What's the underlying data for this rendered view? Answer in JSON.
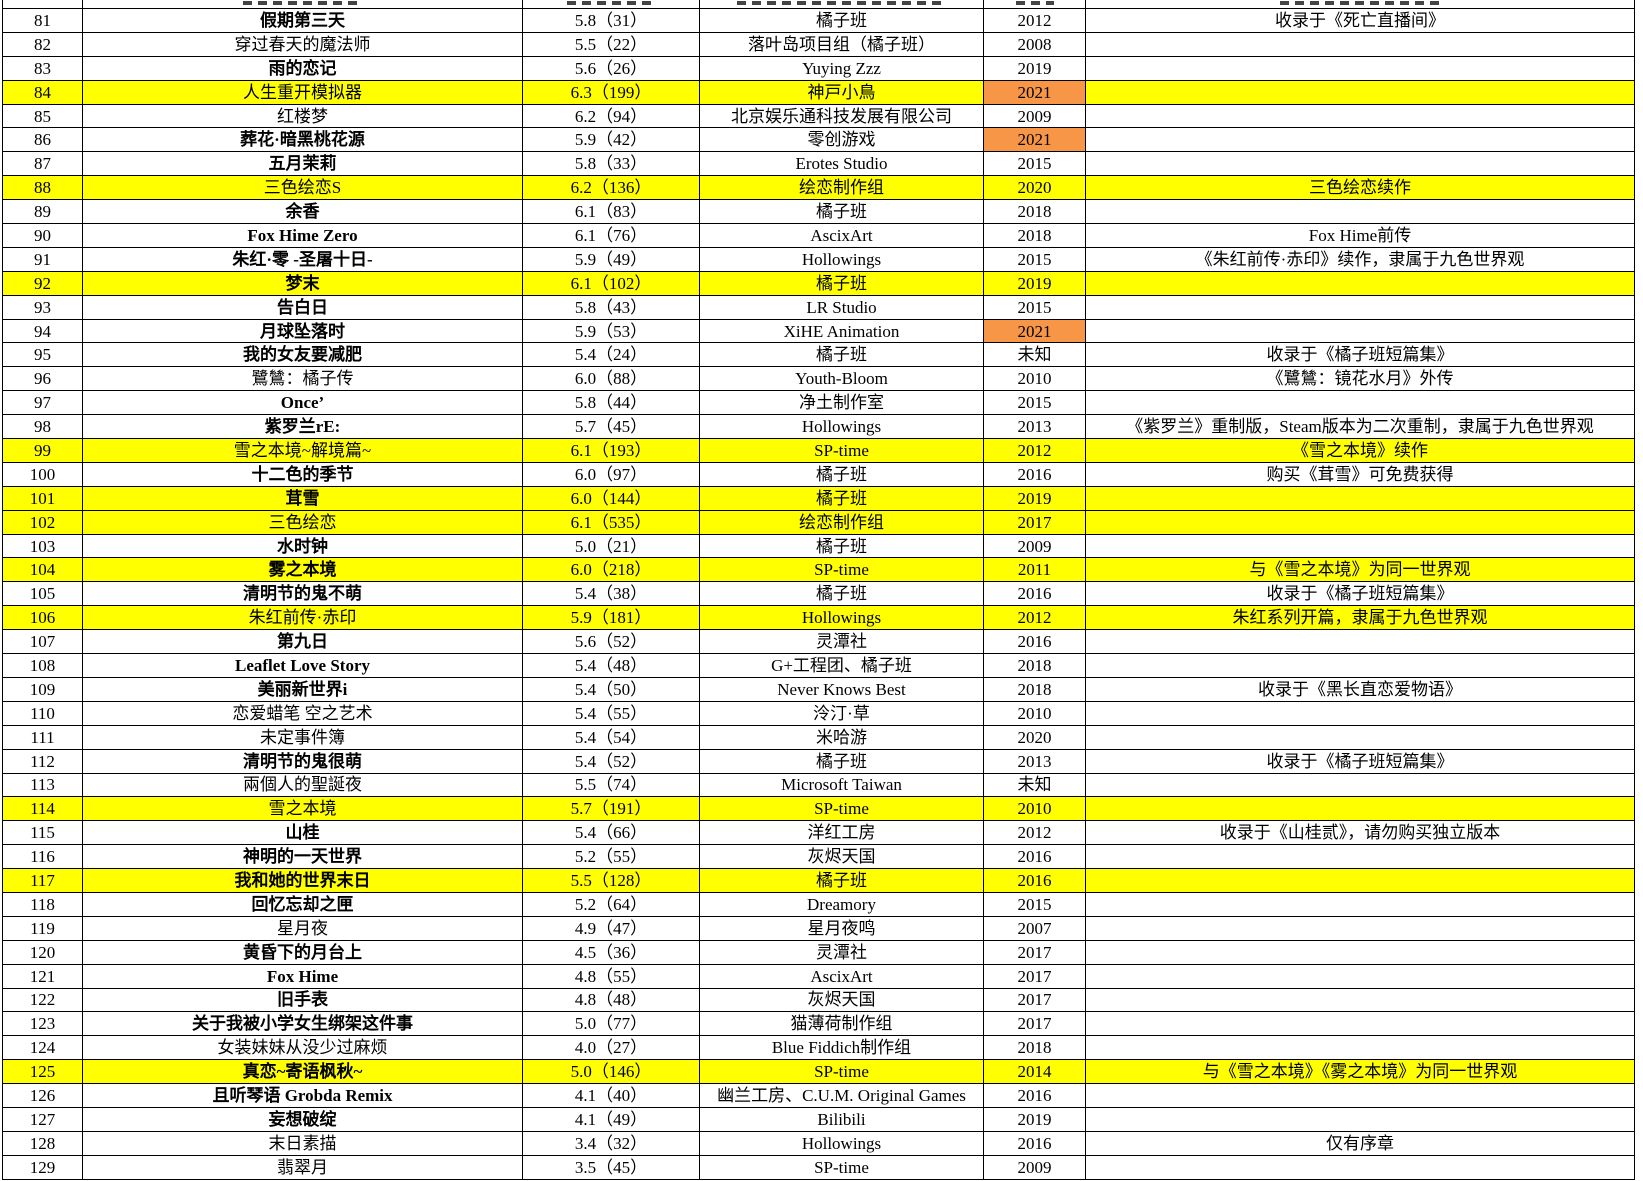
{
  "table": {
    "columns": [
      "num",
      "title",
      "rating",
      "developer",
      "year",
      "note"
    ],
    "colors": {
      "row_highlight": "#FFFF00",
      "year_highlight": "#F79646",
      "grid": "#000000"
    },
    "rows": [
      {
        "num": "81",
        "title": "假期第三天",
        "bold": true,
        "rating": "5.8（31）",
        "developer": "橘子班",
        "year": "2012",
        "note": "收录于《死亡直播间》",
        "hl": false,
        "yhl": false
      },
      {
        "num": "82",
        "title": "穿过春天的魔法师",
        "bold": false,
        "rating": "5.5（22）",
        "developer": "落叶岛项目组（橘子班）",
        "year": "2008",
        "note": "",
        "hl": false,
        "yhl": false
      },
      {
        "num": "83",
        "title": "雨的恋记",
        "bold": true,
        "rating": "5.6（26）",
        "developer": "Yuying Zzz",
        "year": "2019",
        "note": "",
        "hl": false,
        "yhl": false
      },
      {
        "num": "84",
        "title": "人生重开模拟器",
        "bold": false,
        "rating": "6.3（199）",
        "developer": "神戸小鳥",
        "year": "2021",
        "note": "",
        "hl": true,
        "yhl": true
      },
      {
        "num": "85",
        "title": "红楼梦",
        "bold": false,
        "rating": "6.2（94）",
        "developer": "北京娱乐通科技发展有限公司",
        "year": "2009",
        "note": "",
        "hl": false,
        "yhl": false
      },
      {
        "num": "86",
        "title": "葬花·暗黑桃花源",
        "bold": true,
        "rating": "5.9（42）",
        "developer": "零创游戏",
        "year": "2021",
        "note": "",
        "hl": false,
        "yhl": true
      },
      {
        "num": "87",
        "title": "五月茉莉",
        "bold": true,
        "rating": "5.8（33）",
        "developer": "Erotes Studio",
        "year": "2015",
        "note": "",
        "hl": false,
        "yhl": false
      },
      {
        "num": "88",
        "title": "三色绘恋S",
        "bold": false,
        "rating": "6.2（136）",
        "developer": "绘恋制作组",
        "year": "2020",
        "note": "三色绘恋续作",
        "hl": true,
        "yhl": false
      },
      {
        "num": "89",
        "title": "余香",
        "bold": true,
        "rating": "6.1（83）",
        "developer": "橘子班",
        "year": "2018",
        "note": "",
        "hl": false,
        "yhl": false
      },
      {
        "num": "90",
        "title": "Fox Hime Zero",
        "bold": true,
        "rating": "6.1（76）",
        "developer": "AscixArt",
        "year": "2018",
        "note": "Fox Hime前传",
        "hl": false,
        "yhl": false
      },
      {
        "num": "91",
        "title": "朱红·零 -圣屠十日-",
        "bold": true,
        "rating": "5.9（49）",
        "developer": "Hollowings",
        "year": "2015",
        "note": "《朱红前传·赤印》续作，隶属于九色世界观",
        "hl": false,
        "yhl": false
      },
      {
        "num": "92",
        "title": "梦末",
        "bold": true,
        "rating": "6.1（102）",
        "developer": "橘子班",
        "year": "2019",
        "note": "",
        "hl": true,
        "yhl": false
      },
      {
        "num": "93",
        "title": "告白日",
        "bold": true,
        "rating": "5.8（43）",
        "developer": "LR Studio",
        "year": "2015",
        "note": "",
        "hl": false,
        "yhl": false
      },
      {
        "num": "94",
        "title": "月球坠落时",
        "bold": true,
        "rating": "5.9（53）",
        "developer": "XiHE Animation",
        "year": "2021",
        "note": "",
        "hl": false,
        "yhl": true
      },
      {
        "num": "95",
        "title": "我的女友要减肥",
        "bold": true,
        "rating": "5.4（24）",
        "developer": "橘子班",
        "year": "未知",
        "note": "收录于《橘子班短篇集》",
        "hl": false,
        "yhl": false
      },
      {
        "num": "96",
        "title": "鷺鷥：橘子传",
        "bold": false,
        "rating": "6.0（88）",
        "developer": "Youth-Bloom",
        "year": "2010",
        "note": "《鷺鷥：镜花水月》外传",
        "hl": false,
        "yhl": false
      },
      {
        "num": "97",
        "title": "Once’",
        "bold": true,
        "rating": "5.8（44）",
        "developer": "净土制作室",
        "year": "2015",
        "note": "",
        "hl": false,
        "yhl": false
      },
      {
        "num": "98",
        "title": "紫罗兰rE:",
        "bold": true,
        "rating": "5.7（45）",
        "developer": "Hollowings",
        "year": "2013",
        "note": "《紫罗兰》重制版，Steam版本为二次重制，隶属于九色世界观",
        "hl": false,
        "yhl": false
      },
      {
        "num": "99",
        "title": "雪之本境~解境篇~",
        "bold": false,
        "rating": "6.1（193）",
        "developer": "SP-time",
        "year": "2012",
        "note": "《雪之本境》续作",
        "hl": true,
        "yhl": false
      },
      {
        "num": "100",
        "title": "十二色的季节",
        "bold": true,
        "rating": "6.0（97）",
        "developer": "橘子班",
        "year": "2016",
        "note": "购买《茸雪》可免费获得",
        "hl": false,
        "yhl": false
      },
      {
        "num": "101",
        "title": "茸雪",
        "bold": true,
        "rating": "6.0（144）",
        "developer": "橘子班",
        "year": "2019",
        "note": "",
        "hl": true,
        "yhl": false
      },
      {
        "num": "102",
        "title": "三色绘恋",
        "bold": false,
        "rating": "6.1（535）",
        "developer": "绘恋制作组",
        "year": "2017",
        "note": "",
        "hl": true,
        "yhl": false
      },
      {
        "num": "103",
        "title": "水时钟",
        "bold": true,
        "rating": "5.0（21）",
        "developer": "橘子班",
        "year": "2009",
        "note": "",
        "hl": false,
        "yhl": false
      },
      {
        "num": "104",
        "title": "雾之本境",
        "bold": true,
        "rating": "6.0（218）",
        "developer": "SP-time",
        "year": "2011",
        "note": "与《雪之本境》为同一世界观",
        "hl": true,
        "yhl": false
      },
      {
        "num": "105",
        "title": "清明节的鬼不萌",
        "bold": true,
        "rating": "5.4（38）",
        "developer": "橘子班",
        "year": "2016",
        "note": "收录于《橘子班短篇集》",
        "hl": false,
        "yhl": false
      },
      {
        "num": "106",
        "title": "朱红前传·赤印",
        "bold": false,
        "rating": "5.9（181）",
        "developer": "Hollowings",
        "year": "2012",
        "note": "朱红系列开篇，隶属于九色世界观",
        "hl": true,
        "yhl": false
      },
      {
        "num": "107",
        "title": "第九日",
        "bold": true,
        "rating": "5.6（52）",
        "developer": "灵潭社",
        "year": "2016",
        "note": "",
        "hl": false,
        "yhl": false
      },
      {
        "num": "108",
        "title": "Leaflet Love Story",
        "bold": true,
        "rating": "5.4（48）",
        "developer": "G+工程团、橘子班",
        "year": "2018",
        "note": "",
        "hl": false,
        "yhl": false
      },
      {
        "num": "109",
        "title": "美丽新世界i",
        "bold": true,
        "rating": "5.4（50）",
        "developer": "Never Knows Best",
        "year": "2018",
        "note": "收录于《黑长直恋爱物语》",
        "hl": false,
        "yhl": false
      },
      {
        "num": "110",
        "title": "恋爱蜡笔 空之艺术",
        "bold": false,
        "rating": "5.4（55）",
        "developer": "泠汀·草",
        "year": "2010",
        "note": "",
        "hl": false,
        "yhl": false
      },
      {
        "num": "111",
        "title": "未定事件簿",
        "bold": false,
        "rating": "5.4（54）",
        "developer": "米哈游",
        "year": "2020",
        "note": "",
        "hl": false,
        "yhl": false
      },
      {
        "num": "112",
        "title": "清明节的鬼很萌",
        "bold": true,
        "rating": "5.4（52）",
        "developer": "橘子班",
        "year": "2013",
        "note": "收录于《橘子班短篇集》",
        "hl": false,
        "yhl": false
      },
      {
        "num": "113",
        "title": "兩個人的聖誕夜",
        "bold": false,
        "rating": "5.5（74）",
        "developer": "Microsoft Taiwan",
        "year": "未知",
        "note": "",
        "hl": false,
        "yhl": false
      },
      {
        "num": "114",
        "title": "雪之本境",
        "bold": false,
        "rating": "5.7（191）",
        "developer": "SP-time",
        "year": "2010",
        "note": "",
        "hl": true,
        "yhl": false
      },
      {
        "num": "115",
        "title": "山桂",
        "bold": true,
        "rating": "5.4（66）",
        "developer": "洋红工房",
        "year": "2012",
        "note": "收录于《山桂贰》，请勿购买独立版本",
        "hl": false,
        "yhl": false
      },
      {
        "num": "116",
        "title": "神明的一天世界",
        "bold": true,
        "rating": "5.2（55）",
        "developer": "灰烬天国",
        "year": "2016",
        "note": "",
        "hl": false,
        "yhl": false
      },
      {
        "num": "117",
        "title": "我和她的世界末日",
        "bold": true,
        "rating": "5.5（128）",
        "developer": "橘子班",
        "year": "2016",
        "note": "",
        "hl": true,
        "yhl": false
      },
      {
        "num": "118",
        "title": "回忆忘却之匣",
        "bold": true,
        "rating": "5.2（64）",
        "developer": "Dreamory",
        "year": "2015",
        "note": "",
        "hl": false,
        "yhl": false
      },
      {
        "num": "119",
        "title": "星月夜",
        "bold": false,
        "rating": "4.9（47）",
        "developer": "星月夜鸣",
        "year": "2007",
        "note": "",
        "hl": false,
        "yhl": false
      },
      {
        "num": "120",
        "title": "黄昏下的月台上",
        "bold": true,
        "rating": "4.5（36）",
        "developer": "灵潭社",
        "year": "2017",
        "note": "",
        "hl": false,
        "yhl": false
      },
      {
        "num": "121",
        "title": "Fox Hime",
        "bold": true,
        "rating": "4.8（55）",
        "developer": "AscixArt",
        "year": "2017",
        "note": "",
        "hl": false,
        "yhl": false
      },
      {
        "num": "122",
        "title": "旧手表",
        "bold": true,
        "rating": "4.8（48）",
        "developer": "灰烬天国",
        "year": "2017",
        "note": "",
        "hl": false,
        "yhl": false
      },
      {
        "num": "123",
        "title": "关于我被小学女生绑架这件事",
        "bold": true,
        "rating": "5.0（77）",
        "developer": "猫薄荷制作组",
        "year": "2017",
        "note": "",
        "hl": false,
        "yhl": false
      },
      {
        "num": "124",
        "title": "女装妹妹从没少过麻烦",
        "bold": false,
        "rating": "4.0（27）",
        "developer": "Blue Fiddich制作组",
        "year": "2018",
        "note": "",
        "hl": false,
        "yhl": false
      },
      {
        "num": "125",
        "title": "真恋~寄语枫秋~",
        "bold": true,
        "rating": "5.0（146）",
        "developer": "SP-time",
        "year": "2014",
        "note": "与《雪之本境》《雾之本境》为同一世界观",
        "hl": true,
        "yhl": false
      },
      {
        "num": "126",
        "title": "且听琴语 Grobda Remix",
        "bold": true,
        "rating": "4.1（40）",
        "developer": "幽兰工房、C.U.M. Original Games",
        "year": "2016",
        "note": "",
        "hl": false,
        "yhl": false
      },
      {
        "num": "127",
        "title": "妄想破绽",
        "bold": true,
        "rating": "4.1（49）",
        "developer": "Bilibili",
        "year": "2019",
        "note": "",
        "hl": false,
        "yhl": false
      },
      {
        "num": "128",
        "title": "末日素描",
        "bold": false,
        "rating": "3.4（32）",
        "developer": "Hollowings",
        "year": "2016",
        "note": "仅有序章",
        "hl": false,
        "yhl": false
      },
      {
        "num": "129",
        "title": "翡翠月",
        "bold": false,
        "rating": "3.5（45）",
        "developer": "SP-time",
        "year": "2009",
        "note": "",
        "hl": false,
        "yhl": false
      }
    ]
  }
}
